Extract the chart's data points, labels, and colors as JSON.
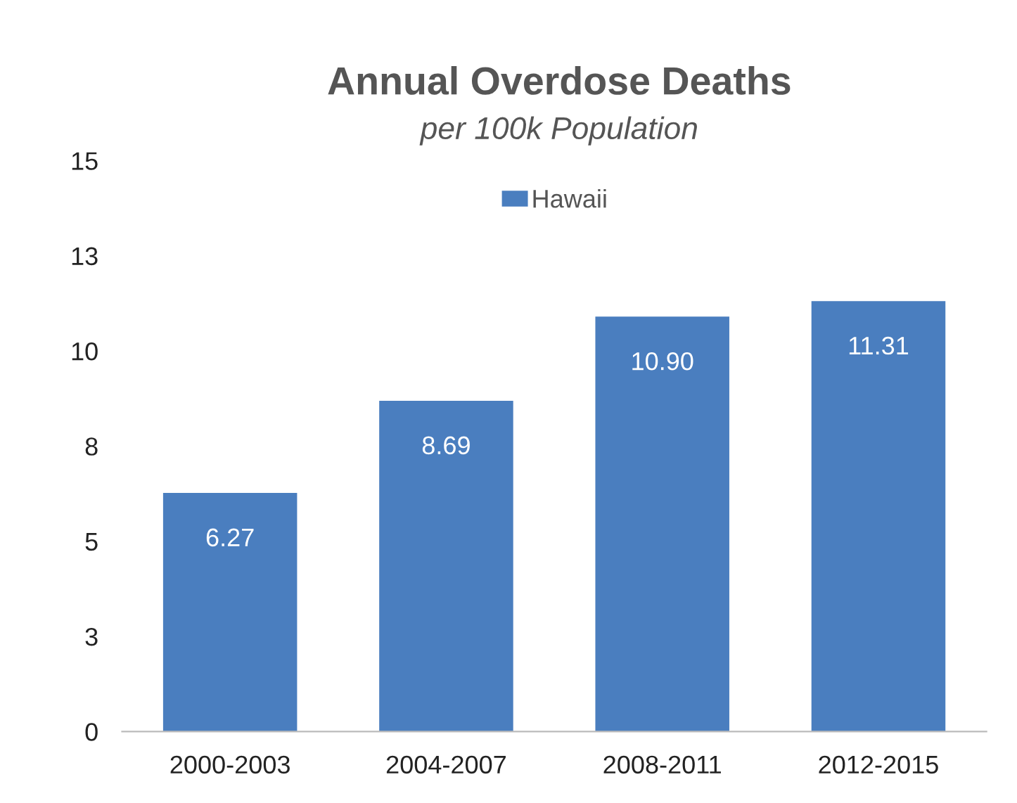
{
  "chart_data": {
    "type": "bar",
    "title": "Annual Overdose Deaths",
    "subtitle": "per 100k Population",
    "categories": [
      "2000-2003",
      "2004-2007",
      "2008-2011",
      "2012-2015"
    ],
    "series": [
      {
        "name": "Hawaii",
        "color": "#4a7ebf",
        "values": [
          6.27,
          8.69,
          10.9,
          11.31
        ]
      }
    ],
    "value_labels": [
      "6.27",
      "8.69",
      "10.90",
      "11.31"
    ],
    "ylim": [
      0,
      15
    ],
    "yticks": [
      0,
      {
        "value": 2.5,
        "label": "3"
      },
      5,
      {
        "value": 7.5,
        "label": "8"
      },
      10,
      {
        "value": 12.5,
        "label": "13"
      },
      15
    ],
    "legend": "top",
    "grid": false
  }
}
